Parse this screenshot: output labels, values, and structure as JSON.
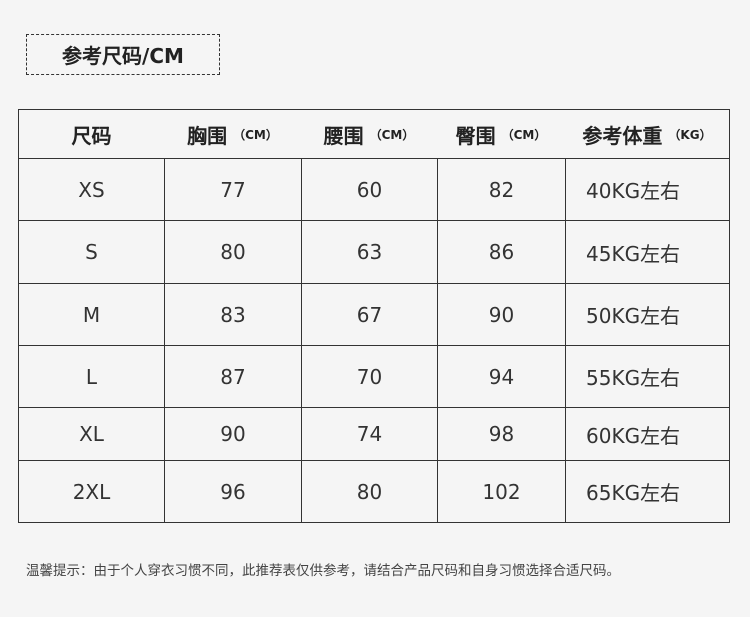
{
  "title": "参考尺码/CM",
  "table": {
    "headers": [
      {
        "label": "尺码",
        "unit": ""
      },
      {
        "label": "胸围",
        "unit": "（CM）"
      },
      {
        "label": "腰围",
        "unit": "（CM）"
      },
      {
        "label": "臀围",
        "unit": "（CM）"
      },
      {
        "label": "参考体重",
        "unit": "（KG）"
      }
    ],
    "rows": [
      [
        "XS",
        "77",
        "60",
        "82",
        "40KG左右"
      ],
      [
        "S",
        "80",
        "63",
        "86",
        "45KG左右"
      ],
      [
        "M",
        "83",
        "67",
        "90",
        "50KG左右"
      ],
      [
        "L",
        "87",
        "70",
        "94",
        "55KG左右"
      ],
      [
        "XL",
        "90",
        "74",
        "98",
        "60KG左右"
      ],
      [
        "2XL",
        "96",
        "80",
        "102",
        "65KG左右"
      ]
    ]
  },
  "note": "温馨提示：由于个人穿衣习惯不同，此推荐表仅供参考，请结合产品尺码和自身习惯选择合适尺码。"
}
